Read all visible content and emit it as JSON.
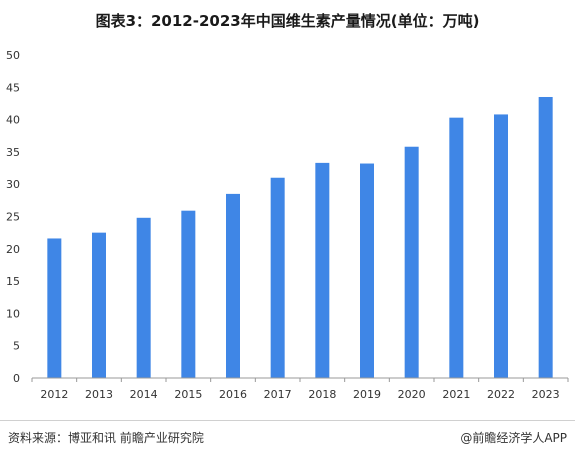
{
  "title": "图表3：2012-2023年中国维生素产量情况(单位：万吨)",
  "source": "资料来源：博亚和讯 前瞻产业研究院",
  "credit": "@前瞻经济学人APP",
  "colors": {
    "bar": "#3f86e6",
    "axis": "#999999",
    "text": "#333333"
  },
  "chart_data": {
    "type": "bar",
    "title": "图表3：2012-2023年中国维生素产量情况(单位：万吨)",
    "xlabel": "",
    "ylabel": "",
    "ylim": [
      0,
      50
    ],
    "yticks": [
      0,
      5,
      10,
      15,
      20,
      25,
      30,
      35,
      40,
      45,
      50
    ],
    "grid": false,
    "categories": [
      "2012",
      "2013",
      "2014",
      "2015",
      "2016",
      "2017",
      "2018",
      "2019",
      "2020",
      "2021",
      "2022",
      "2023"
    ],
    "values": [
      21.6,
      22.5,
      24.8,
      25.9,
      28.5,
      31.0,
      33.3,
      33.2,
      35.8,
      40.3,
      40.8,
      43.5
    ]
  }
}
